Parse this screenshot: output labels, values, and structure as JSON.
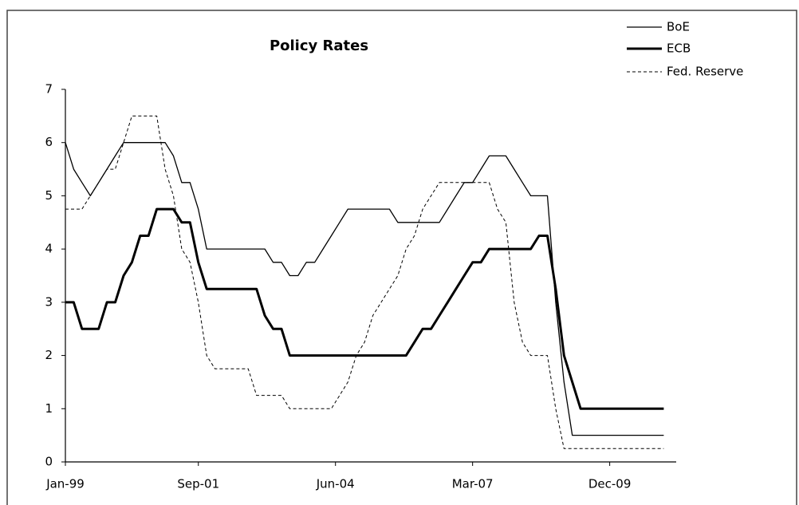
{
  "chart_data": {
    "type": "line",
    "title": "Policy Rates",
    "x": [
      "Jan-99",
      "Mar-99",
      "May-99",
      "Jul-99",
      "Sep-99",
      "Nov-99",
      "Jan-00",
      "Mar-00",
      "May-00",
      "Jul-00",
      "Sep-00",
      "Nov-00",
      "Jan-01",
      "Mar-01",
      "May-01",
      "Jul-01",
      "Sep-01",
      "Nov-01",
      "Jan-02",
      "Mar-02",
      "May-02",
      "Jul-02",
      "Sep-02",
      "Nov-02",
      "Jan-03",
      "Mar-03",
      "May-03",
      "Jul-03",
      "Sep-03",
      "Nov-03",
      "Jan-04",
      "Mar-04",
      "May-04",
      "Jul-04",
      "Sep-04",
      "Nov-04",
      "Jan-05",
      "Mar-05",
      "May-05",
      "Jul-05",
      "Sep-05",
      "Nov-05",
      "Jan-06",
      "Mar-06",
      "May-06",
      "Jul-06",
      "Sep-06",
      "Nov-06",
      "Jan-07",
      "Mar-07",
      "May-07",
      "Jul-07",
      "Sep-07",
      "Nov-07",
      "Jan-08",
      "Mar-08",
      "May-08",
      "Jul-08",
      "Sep-08",
      "Nov-08",
      "Jan-09",
      "Mar-09",
      "May-09",
      "Jul-09",
      "Sep-09",
      "Nov-09",
      "Jan-10",
      "Mar-10",
      "May-10",
      "Jul-10",
      "Sep-10",
      "Nov-10",
      "Jan-11"
    ],
    "series": [
      {
        "name": "BoE",
        "color": "#000000",
        "line_width": 1.3,
        "dashed": false,
        "values": [
          6.0,
          5.5,
          5.25,
          5.0,
          5.25,
          5.5,
          5.75,
          6.0,
          6.0,
          6.0,
          6.0,
          6.0,
          6.0,
          5.75,
          5.25,
          5.25,
          4.75,
          4.0,
          4.0,
          4.0,
          4.0,
          4.0,
          4.0,
          4.0,
          4.0,
          3.75,
          3.75,
          3.5,
          3.5,
          3.75,
          3.75,
          4.0,
          4.25,
          4.5,
          4.75,
          4.75,
          4.75,
          4.75,
          4.75,
          4.75,
          4.5,
          4.5,
          4.5,
          4.5,
          4.5,
          4.5,
          4.75,
          5.0,
          5.25,
          5.25,
          5.5,
          5.75,
          5.75,
          5.75,
          5.5,
          5.25,
          5.0,
          5.0,
          5.0,
          3.0,
          1.5,
          0.5,
          0.5,
          0.5,
          0.5,
          0.5,
          0.5,
          0.5,
          0.5,
          0.5,
          0.5,
          0.5,
          0.5
        ]
      },
      {
        "name": "ECB",
        "color": "#000000",
        "line_width": 3,
        "dashed": false,
        "values": [
          3.0,
          3.0,
          2.5,
          2.5,
          2.5,
          3.0,
          3.0,
          3.5,
          3.75,
          4.25,
          4.25,
          4.75,
          4.75,
          4.75,
          4.5,
          4.5,
          3.75,
          3.25,
          3.25,
          3.25,
          3.25,
          3.25,
          3.25,
          3.25,
          2.75,
          2.5,
          2.5,
          2.0,
          2.0,
          2.0,
          2.0,
          2.0,
          2.0,
          2.0,
          2.0,
          2.0,
          2.0,
          2.0,
          2.0,
          2.0,
          2.0,
          2.0,
          2.25,
          2.5,
          2.5,
          2.75,
          3.0,
          3.25,
          3.5,
          3.75,
          3.75,
          4.0,
          4.0,
          4.0,
          4.0,
          4.0,
          4.0,
          4.25,
          4.25,
          3.25,
          2.0,
          1.5,
          1.0,
          1.0,
          1.0,
          1.0,
          1.0,
          1.0,
          1.0,
          1.0,
          1.0,
          1.0,
          1.0
        ]
      },
      {
        "name": "Fed. Reserve",
        "color": "#000000",
        "line_width": 1,
        "dashed": true,
        "values": [
          4.75,
          4.75,
          4.75,
          5.0,
          5.25,
          5.5,
          5.5,
          6.0,
          6.5,
          6.5,
          6.5,
          6.5,
          5.5,
          5.0,
          4.0,
          3.75,
          3.0,
          2.0,
          1.75,
          1.75,
          1.75,
          1.75,
          1.75,
          1.25,
          1.25,
          1.25,
          1.25,
          1.0,
          1.0,
          1.0,
          1.0,
          1.0,
          1.0,
          1.25,
          1.5,
          2.0,
          2.25,
          2.75,
          3.0,
          3.25,
          3.5,
          4.0,
          4.25,
          4.75,
          5.0,
          5.25,
          5.25,
          5.25,
          5.25,
          5.25,
          5.25,
          5.25,
          4.75,
          4.5,
          3.0,
          2.25,
          2.0,
          2.0,
          2.0,
          1.0,
          0.25,
          0.25,
          0.25,
          0.25,
          0.25,
          0.25,
          0.25,
          0.25,
          0.25,
          0.25,
          0.25,
          0.25,
          0.25
        ]
      }
    ],
    "xlim": [
      "Jan-99",
      "Apr-11"
    ],
    "xticks": [
      "Jan-99",
      "Sep-01",
      "Jun-04",
      "Mar-07",
      "Dec-09"
    ],
    "ylim": [
      0,
      7
    ],
    "yticks": [
      0,
      1,
      2,
      3,
      4,
      5,
      6,
      7
    ],
    "grid": false,
    "legend": "top-right"
  }
}
